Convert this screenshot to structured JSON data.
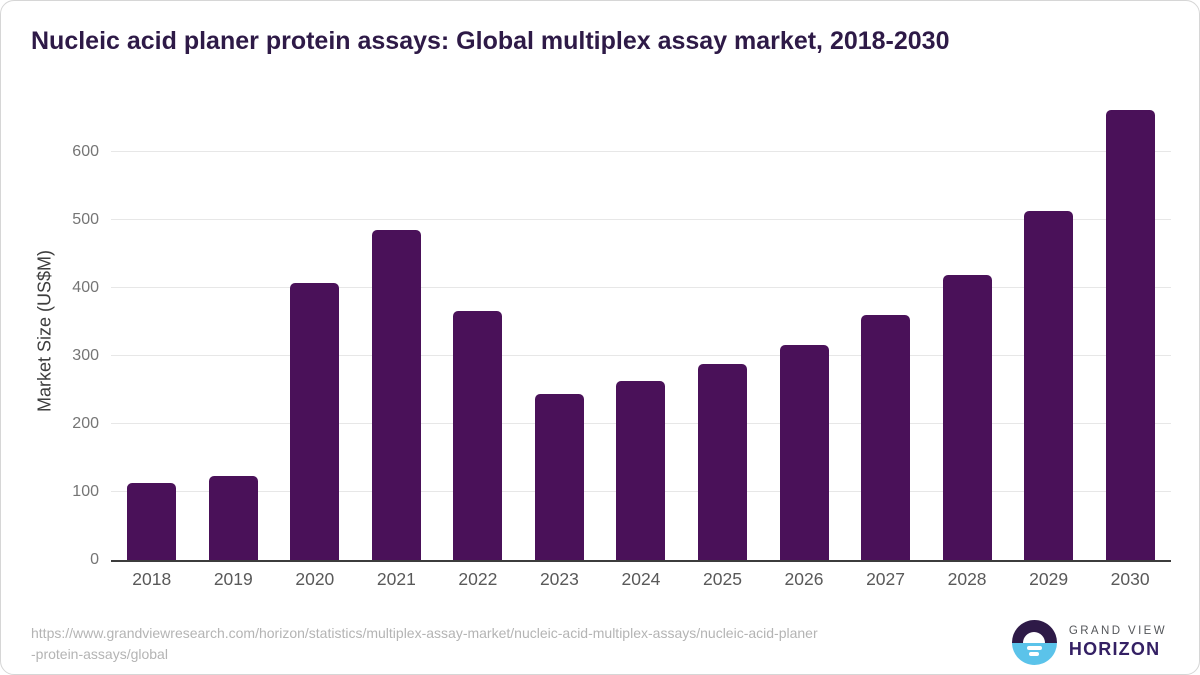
{
  "title": "Nucleic acid planer protein assays: Global multiplex assay market, 2018-2030",
  "chart_data": {
    "type": "bar",
    "title": "Nucleic acid planer protein assays: Global multiplex assay market, 2018-2030",
    "categories": [
      "2018",
      "2019",
      "2020",
      "2021",
      "2022",
      "2023",
      "2024",
      "2025",
      "2026",
      "2027",
      "2028",
      "2029",
      "2030"
    ],
    "values": [
      113,
      124,
      407,
      485,
      366,
      245,
      263,
      288,
      317,
      360,
      420,
      513,
      662
    ],
    "xlabel": "",
    "ylabel": "Market Size (US$M)",
    "ylim": [
      0,
      677
    ],
    "yticks": [
      0,
      100,
      200,
      300,
      400,
      500,
      600
    ],
    "grid": "horizontal-only",
    "legend": "none",
    "bar_color": "#4a1159"
  },
  "footer": {
    "url_line1": "https://www.grandviewresearch.com/horizon/statistics/multiplex-assay-market/nucleic-acid-multiplex-assays/nucleic-acid-planer",
    "url_line2": "-protein-assays/global"
  },
  "logo": {
    "brand_top": "GRAND VIEW",
    "brand_bottom": "HORIZON",
    "icon": "horizon-sunrise-icon"
  },
  "colors": {
    "title": "#2e1a47",
    "bar": "#4a1159",
    "gridline": "#e7e7e7",
    "axis_line": "#3c3c3c",
    "y_tick_text": "#757575",
    "x_tick_text": "#595959",
    "url_text": "#b4b4b4",
    "logo_purple": "#2e1a47",
    "logo_blue": "#5bc3ea",
    "horizon_text": "#342064",
    "grandview_text": "#54565a"
  }
}
